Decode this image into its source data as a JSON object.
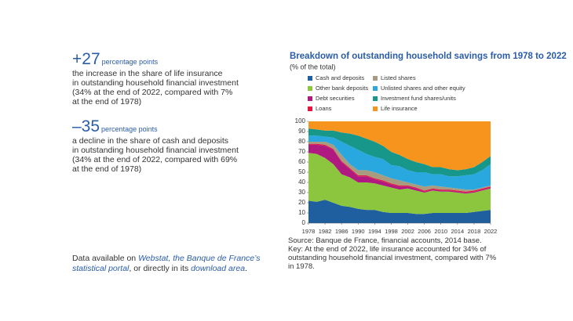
{
  "highlights": [
    {
      "figure": "+27",
      "unit": "percentage points",
      "text": [
        "the increase in the share of life insurance",
        "in outstanding household financial investment",
        "(34% at the end of 2022, compared with 7%",
        "at the end of 1978)"
      ]
    },
    {
      "figure": "–35",
      "unit": "percentage points",
      "text": [
        "a decline in the share of cash and deposits",
        "in outstanding household financial investment",
        "(34% at the end of 2022, compared with 69%",
        "at the end of 1978)"
      ]
    }
  ],
  "footer": {
    "parts": [
      "Data available on ",
      "Webstat, the Banque de France’s statistical portal",
      ", or directly in its ",
      "download area",
      "."
    ]
  },
  "chart_data": {
    "type": "area",
    "stacked": true,
    "title": "Breakdown of outstanding household savings from 1978 to 2022",
    "subtitle": "(% of the total)",
    "x": [
      1978,
      1980,
      1982,
      1984,
      1986,
      1988,
      1990,
      1992,
      1994,
      1996,
      1998,
      2000,
      2002,
      2004,
      2006,
      2008,
      2010,
      2012,
      2014,
      2016,
      2018,
      2020,
      2022
    ],
    "xlim": [
      1978,
      2022
    ],
    "xticks": [
      1978,
      1982,
      1986,
      1990,
      1994,
      1998,
      2002,
      2006,
      2010,
      2014,
      2018,
      2022
    ],
    "ylim": [
      0,
      100
    ],
    "yticks": [
      0,
      10,
      20,
      30,
      40,
      50,
      60,
      70,
      80,
      90,
      100
    ],
    "grid": false,
    "series": [
      {
        "name": "Cash and deposits",
        "color": "#1f5f9f",
        "values": [
          22,
          21,
          23,
          20,
          17,
          16,
          14,
          13,
          13,
          11,
          10,
          10,
          10,
          9,
          9,
          10,
          10,
          10,
          10,
          10,
          11,
          12,
          13
        ]
      },
      {
        "name": "Other bank deposits",
        "color": "#8cc63f",
        "values": [
          47,
          47,
          41,
          38,
          31,
          29,
          26,
          27,
          26,
          26,
          25,
          23,
          24,
          23,
          21,
          22,
          21,
          21,
          20,
          19,
          19,
          20,
          21
        ]
      },
      {
        "name": "Debt securities",
        "color": "#b0197f",
        "values": [
          8,
          9,
          12,
          14,
          12,
          8,
          6,
          6,
          4,
          4,
          3,
          3,
          2,
          2,
          1,
          1,
          1,
          1,
          1,
          1,
          1,
          1,
          1
        ]
      },
      {
        "name": "Loans",
        "color": "#e3173e",
        "values": [
          1,
          1,
          1,
          1,
          1,
          1,
          1,
          1,
          1,
          1,
          1,
          1,
          1,
          1,
          1,
          1,
          1,
          1,
          1,
          1,
          1,
          1,
          1
        ]
      },
      {
        "name": "Listed shares",
        "color": "#a99b7f",
        "values": [
          2,
          2,
          3,
          4,
          6,
          4,
          5,
          5,
          6,
          5,
          5,
          5,
          3,
          3,
          4,
          3,
          3,
          2,
          2,
          2,
          1,
          1,
          1
        ]
      },
      {
        "name": "Unlisted shares and other equity",
        "color": "#29a8df",
        "values": [
          6,
          6,
          5,
          7,
          13,
          18,
          20,
          16,
          15,
          16,
          13,
          14,
          12,
          12,
          14,
          11,
          12,
          11,
          12,
          14,
          15,
          17,
          21
        ]
      },
      {
        "name": "Investment fund shares/units",
        "color": "#16978a",
        "values": [
          7,
          6,
          6,
          7,
          9,
          12,
          14,
          15,
          15,
          13,
          13,
          11,
          11,
          10,
          8,
          7,
          7,
          7,
          6,
          6,
          7,
          8,
          8
        ]
      },
      {
        "name": "Life insurance",
        "color": "#f7941d",
        "values": [
          7,
          8,
          9,
          9,
          11,
          12,
          14,
          17,
          20,
          24,
          30,
          33,
          37,
          40,
          42,
          45,
          45,
          47,
          48,
          47,
          45,
          40,
          34
        ]
      }
    ],
    "source": "Source: Banque de France, financial accounts, 2014 base.",
    "note": "Key: At the end of 2022, life insurance accounted for 34% of outstanding household financial investment, compared with 7% in 1978."
  }
}
